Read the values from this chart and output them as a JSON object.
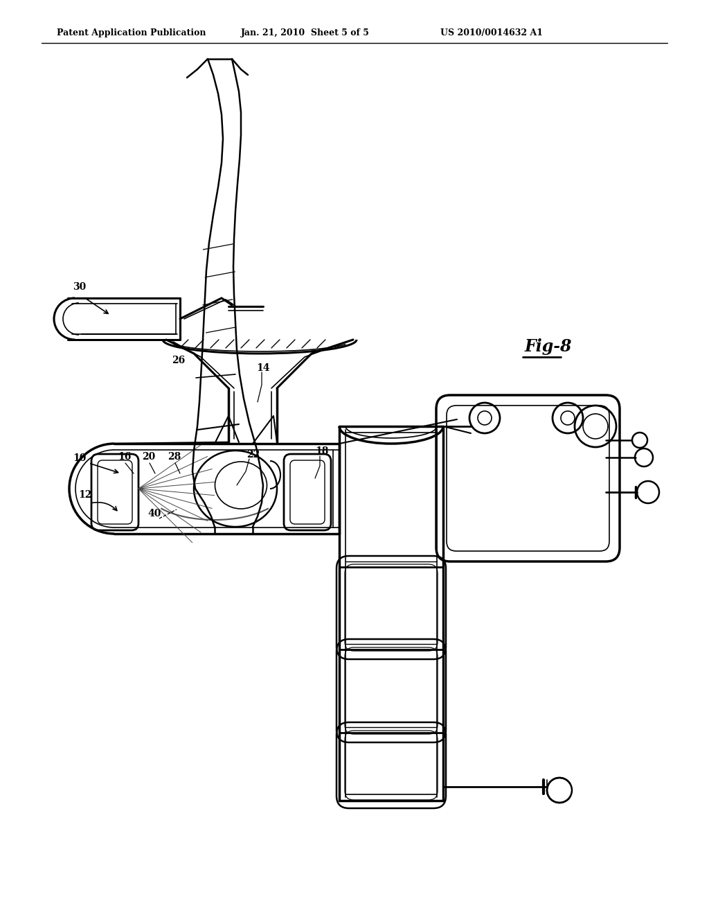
{
  "bg_color": "#ffffff",
  "lc": "#000000",
  "header1": "Patent Application Publication",
  "header2": "Jan. 21, 2010  Sheet 5 of 5",
  "header3": "US 2010/0014632 A1",
  "fig_label": "Fig-8"
}
